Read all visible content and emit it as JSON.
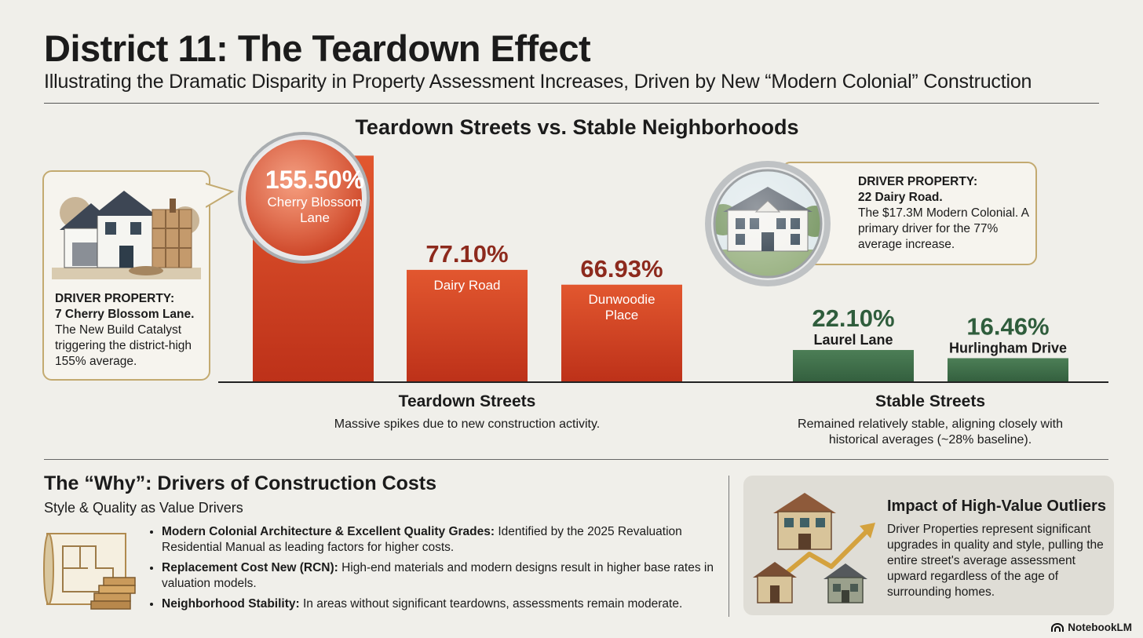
{
  "header": {
    "title": "District 11: The Teardown Effect",
    "subtitle": "Illustrating the Dramatic Disparity in Property Assessment Increases, Driven by New “Modern Colonial” Construction"
  },
  "chart_data": {
    "type": "bar",
    "title": "Teardown Streets vs. Stable Neighborhoods",
    "categories": [
      "Cherry Blossom Lane",
      "Dairy Road",
      "Dunwoodie Place",
      "Laurel Lane",
      "Hurlingham Drive"
    ],
    "values": [
      155.5,
      77.1,
      66.93,
      22.1,
      16.46
    ],
    "value_labels": [
      "155.50%",
      "77.10%",
      "66.93%",
      "22.10%",
      "16.46%"
    ],
    "category_lines": [
      [
        "Cherry Blossom",
        "Lane"
      ],
      [
        "Dairy Road"
      ],
      [
        "Dunwoodie",
        "Place"
      ],
      [
        "Laurel Lane"
      ],
      [
        "Hurlingham Drive"
      ]
    ],
    "groups": [
      {
        "name": "Teardown Streets",
        "description": "Massive spikes due to new construction activity.",
        "color": "#cf4325"
      },
      {
        "name": "Stable Streets",
        "description": "Remained relatively stable, aligning closely with historical averages (~28% baseline).",
        "color": "#3e6e48"
      }
    ],
    "ylabel": "",
    "ylim": [
      0,
      160
    ],
    "unit": "%"
  },
  "callouts": {
    "left": {
      "heading": "DRIVER PROPERTY:",
      "address": "7 Cherry Blossom Lane.",
      "text": "The New Build Catalyst triggering the district-high 155% average."
    },
    "right": {
      "heading": "DRIVER PROPERTY:",
      "address": "22 Dairy Road.",
      "text": "The $17.3M Modern Colonial. A primary driver for the 77% average increase."
    }
  },
  "why": {
    "title": "The “Why”: Drivers of Construction Costs",
    "subtitle": "Style & Quality as Value Drivers",
    "bullets": [
      {
        "label": "Modern Colonial Architecture & Excellent Quality Grades:",
        "text": " Identified by the 2025 Revaluation Residential Manual as leading factors for higher costs."
      },
      {
        "label": "Replacement Cost New (RCN):",
        "text": " High-end materials and modern designs result in higher base rates in valuation models."
      },
      {
        "label": "Neighborhood Stability:",
        "text": " In areas without significant teardowns, assessments remain moderate."
      }
    ]
  },
  "impact": {
    "title": "Impact of High-Value Outliers",
    "text": "Driver Properties represent significant upgrades in quality and style, pulling the entire street's average assessment upward regardless of the age of surrounding homes."
  },
  "brand": "NotebookLM"
}
